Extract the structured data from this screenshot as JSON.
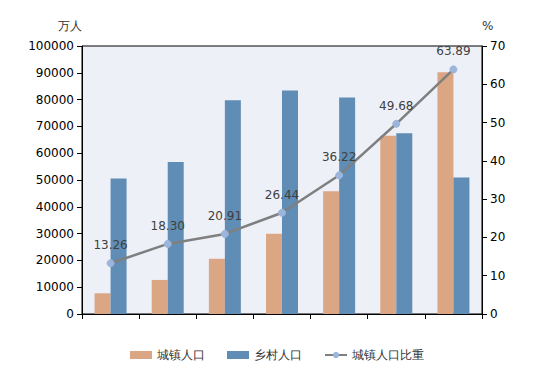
{
  "chart_data": {
    "type": "bar",
    "categories": [
      null,
      null,
      null,
      null,
      null,
      null,
      null
    ],
    "y_label": "万人",
    "y2_label": "%",
    "ylim": [
      0,
      100000
    ],
    "yticks": [
      0,
      10000,
      20000,
      30000,
      40000,
      50000,
      60000,
      70000,
      80000,
      90000,
      100000
    ],
    "y2lim": [
      0,
      70
    ],
    "y2ticks": [
      0,
      10,
      20,
      30,
      40,
      50,
      60,
      70
    ],
    "grid": false,
    "legend": "bottom",
    "tick_labels": "y",
    "series": [
      {
        "name": "城镇人口",
        "type": "bar",
        "color": "#dba684",
        "values": [
          7726,
          12710,
          20659,
          29971,
          45844,
          66557,
          90199
        ]
      },
      {
        "name": "乡村人口",
        "type": "bar",
        "color": "#5f8db5",
        "values": [
          50534,
          56748,
          79736,
          83397,
          80739,
          67415,
          50979
        ]
      },
      {
        "name": "城镇人口比重",
        "type": "line",
        "axis": "y2",
        "color": "#7f7f7f",
        "marker": "circle",
        "line_style": "solid",
        "data_labels": true,
        "values": [
          13.26,
          18.3,
          20.91,
          26.44,
          36.22,
          49.68,
          63.89
        ],
        "value_labels": [
          "13.26",
          "18.30",
          "20.91",
          "26.44",
          "36.22",
          "49.68",
          "63.89"
        ]
      }
    ]
  }
}
